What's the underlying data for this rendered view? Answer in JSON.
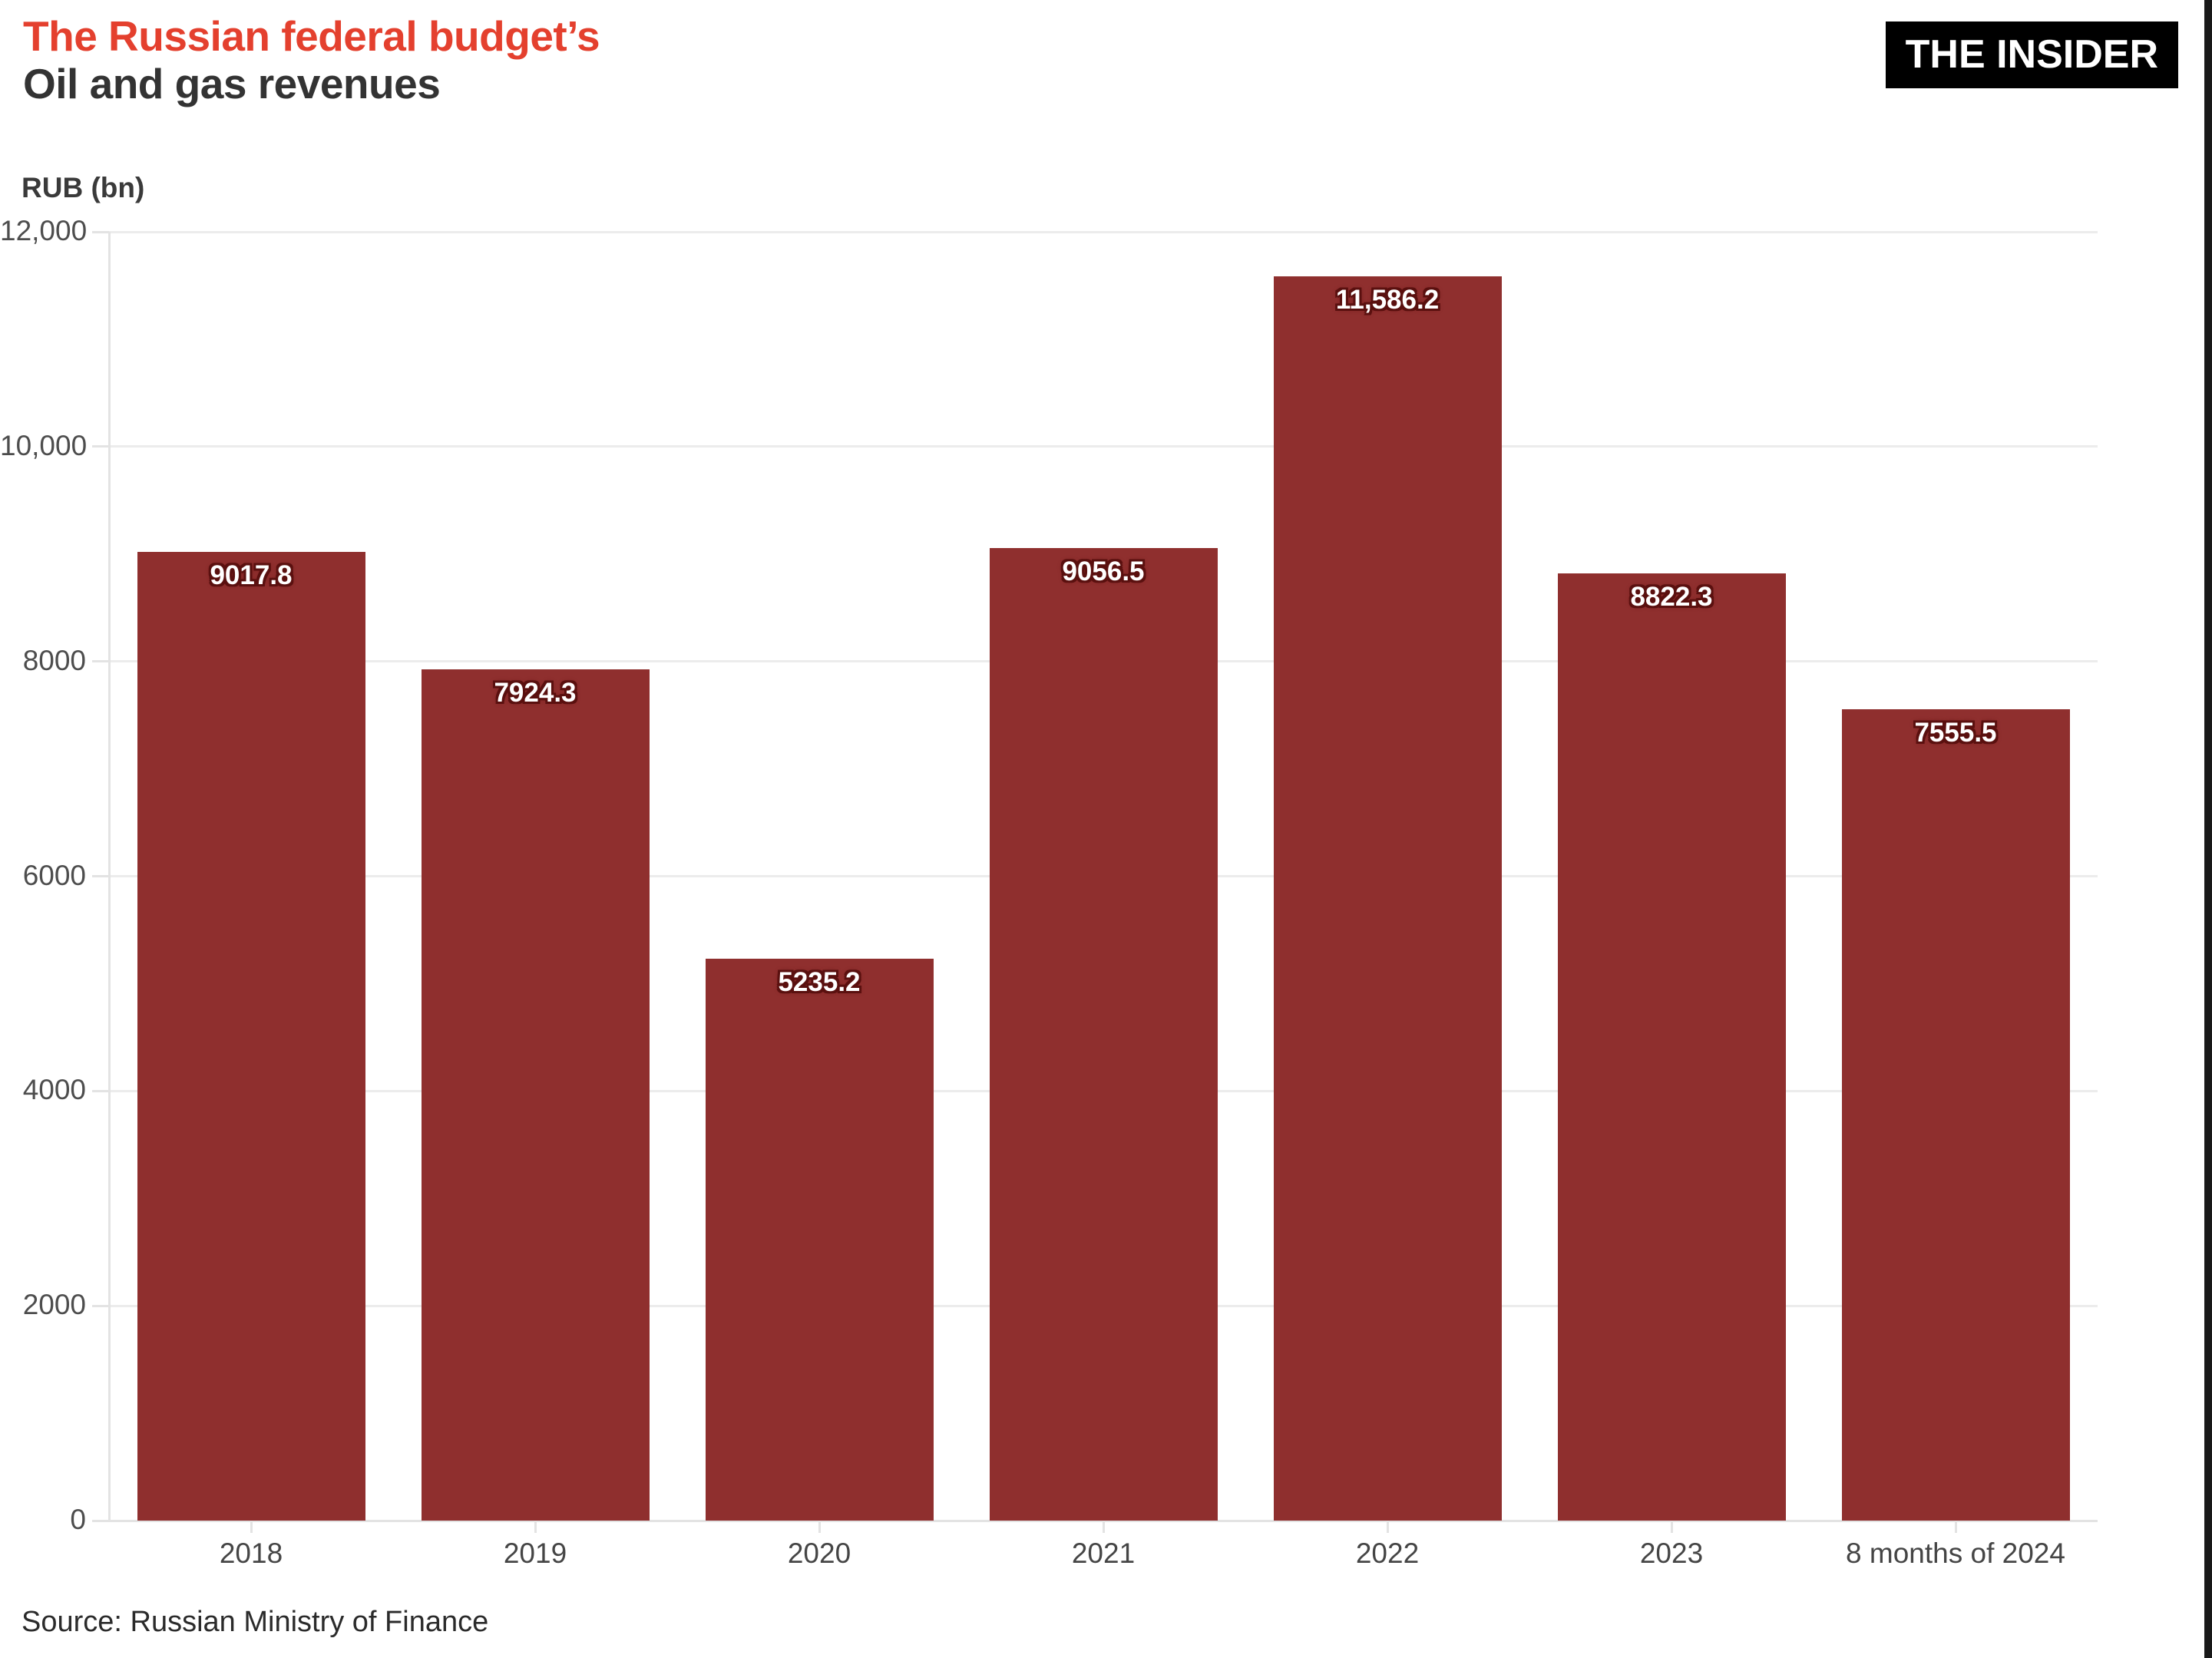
{
  "header": {
    "title_accent": "The Russian federal budget’s",
    "title_main": "Oil and gas revenues",
    "logo_text": "THE INSIDER"
  },
  "footer": {
    "source": "Source: Russian Ministry of Finance"
  },
  "colors": {
    "accent_red": "#e4402e",
    "title_dark": "#333333",
    "bar": "#8f2f2e",
    "grid": "#ececec",
    "axis_line": "#e3e3e3",
    "axis_text": "#4d4d4d",
    "value_text": "#ffffff",
    "value_halo": "#5a100f",
    "logo_bg": "#000000",
    "logo_text_color": "#ffffff",
    "edge_strip": "#191919"
  },
  "chart_data": {
    "type": "bar",
    "title": "The Russian federal budget’s Oil and gas revenues",
    "ylabel": "RUB (bn)",
    "xlabel": "",
    "categories": [
      "2018",
      "2019",
      "2020",
      "2021",
      "2022",
      "2023",
      "8 months of 2024"
    ],
    "values": [
      9017.8,
      7924.3,
      5235.2,
      9056.5,
      11586.2,
      8822.3,
      7555.5
    ],
    "value_labels": [
      "9017.8",
      "7924.3",
      "5235.2",
      "9056.5",
      "11,586.2",
      "8822.3",
      "7555.5"
    ],
    "ylim": [
      0,
      12000
    ],
    "ytick_values": [
      0,
      2000,
      4000,
      6000,
      8000,
      10000,
      12000
    ],
    "ytick_labels": [
      "0",
      "2000",
      "4000",
      "6000",
      "8000",
      "10,000",
      "12,000"
    ],
    "grid": true,
    "legend": false,
    "bar_color": "#8f2f2e"
  }
}
